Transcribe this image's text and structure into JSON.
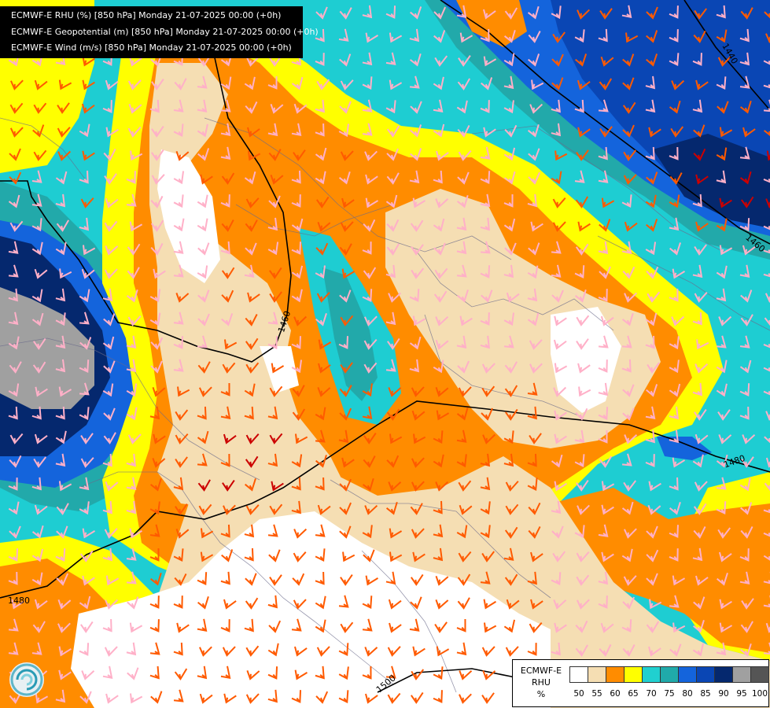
{
  "header": {
    "line1": "ECMWF-E RHU (%) [850 hPa] Monday 21-07-2025 00:00 (+0h)",
    "line2": "ECMWF-E Geopotential (m) [850 hPa] Monday 21-07-2025 00:00 (+0h)",
    "line3": "ECMWF-E Wind (m/s) [850 hPa] Monday 21-07-2025 00:00 (+0h)"
  },
  "contours": {
    "label_1440": "1440",
    "label_1460a": "1460",
    "label_1460b": "1460",
    "label_1480a": "1480",
    "label_1480b": "1480",
    "label_1500": "1500"
  },
  "legend": {
    "title_line1": "ECMWF-E",
    "title_line2": "RHU",
    "title_line3": "%",
    "ticks": [
      "50",
      "55",
      "60",
      "65",
      "70",
      "75",
      "80",
      "85",
      "90",
      "95",
      "100"
    ],
    "colors": [
      "#ffffff",
      "#f5deb3",
      "#ff8c00",
      "#ffff00",
      "#20d0d0",
      "#20aaaa",
      "#1464dc",
      "#0a46b4",
      "#05286e",
      "#a0a0a0",
      "#555555"
    ]
  },
  "map_colors": {
    "rh_50": "#ffffff",
    "rh_55": "#f5deb3",
    "rh_60": "#ff8c00",
    "rh_65": "#ffff00",
    "rh_70": "#1ecdd2",
    "rh_75": "#22a9aa",
    "rh_80": "#1464dc",
    "rh_85": "#0a46b4",
    "rh_90": "#05286e",
    "rh_95": "#a0a0a0",
    "wind_weak": "#ffb0c8",
    "wind_med": "#ff5a00",
    "wind_strong": "#cc0000",
    "contour": "#000000"
  }
}
